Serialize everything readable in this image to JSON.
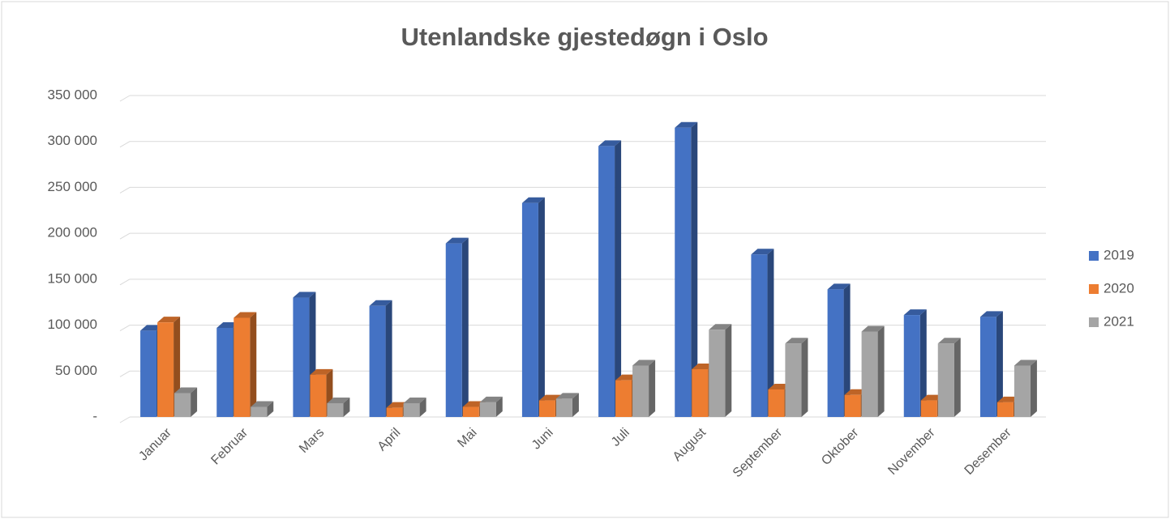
{
  "chart_data": {
    "type": "bar3d",
    "title": "Utenlandske gjestedøgn i Oslo",
    "categories": [
      "Januar",
      "Februar",
      "Mars",
      "April",
      "Mai",
      "Juni",
      "Juli",
      "August",
      "September",
      "Oktober",
      "November",
      "Desember"
    ],
    "series": [
      {
        "name": "2019",
        "color": "#4472c4",
        "values": [
          94000,
          97000,
          130000,
          121000,
          189000,
          233000,
          295000,
          315000,
          177000,
          139000,
          111000,
          109000
        ]
      },
      {
        "name": "2020",
        "color": "#ed7d31",
        "values": [
          103000,
          108000,
          46000,
          10000,
          11000,
          18000,
          40000,
          52000,
          30000,
          24000,
          18000,
          16000
        ]
      },
      {
        "name": "2021",
        "color": "#a5a5a5",
        "values": [
          26000,
          11000,
          15000,
          15000,
          16000,
          20000,
          56000,
          95000,
          80000,
          93000,
          80000,
          56000
        ]
      }
    ],
    "ylim": [
      0,
      350000
    ],
    "yticks": [
      {
        "value": 0,
        "label": "-"
      },
      {
        "value": 50000,
        "label": "50 000"
      },
      {
        "value": 100000,
        "label": "100 000"
      },
      {
        "value": 150000,
        "label": "150 000"
      },
      {
        "value": 200000,
        "label": "200 000"
      },
      {
        "value": 250000,
        "label": "250 000"
      },
      {
        "value": 300000,
        "label": "300 000"
      },
      {
        "value": 350000,
        "label": "350 000"
      }
    ],
    "grid": true,
    "legend": "right"
  }
}
